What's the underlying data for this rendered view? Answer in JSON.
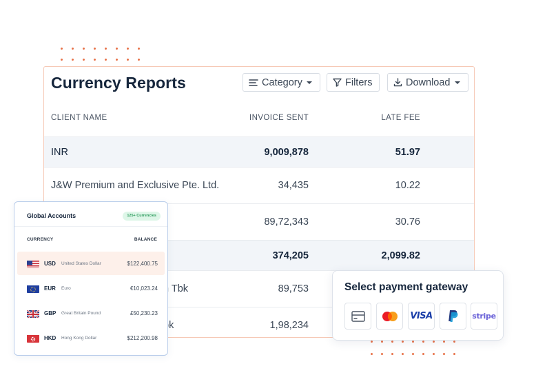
{
  "report": {
    "title": "Currency Reports",
    "toolbar": {
      "category_label": "Category",
      "filters_label": "Filters",
      "download_label": "Download"
    },
    "columns": {
      "client": "CLIENT NAME",
      "invoice": "INVOICE SENT",
      "late_fee": "LATE FEE"
    },
    "rows": [
      {
        "client": "INR",
        "invoice": "9,009,878",
        "late_fee": "51.97",
        "highlighted": true
      },
      {
        "client": "J&W Premium and Exclusive Pte. Ltd.",
        "invoice": "34,435",
        "late_fee": "10.22",
        "highlighted": false
      },
      {
        "client": "",
        "invoice": "89,72,343",
        "late_fee": "30.76",
        "highlighted": false
      },
      {
        "client": "",
        "invoice": "374,205",
        "late_fee": "2,099.82",
        "highlighted": true
      },
      {
        "client": "n Tbk",
        "invoice": "89,753",
        "late_fee": "",
        "highlighted": false
      },
      {
        "client": "bk",
        "invoice": "1,98,234",
        "late_fee": "",
        "highlighted": false
      }
    ]
  },
  "accounts": {
    "title": "Global Accounts",
    "badge": "125+ Currencies",
    "col_currency": "CURRENCY",
    "col_balance": "BALANCE",
    "rows": [
      {
        "code": "USD",
        "name": "United States Dollar",
        "balance": "$122,400.75",
        "flag": "us-flag"
      },
      {
        "code": "EUR",
        "name": "Euro",
        "balance": "€10,023.24",
        "flag": "eu-flag"
      },
      {
        "code": "GBP",
        "name": "Great Britain Pound",
        "balance": "£50,230.23",
        "flag": "uk-flag"
      },
      {
        "code": "HKD",
        "name": "Hong Kong Dollar",
        "balance": "$212,200.98",
        "flag": "hk-flag"
      }
    ]
  },
  "payment": {
    "title": "Select payment gateway",
    "gateways": [
      {
        "name": "card",
        "icon": "card-icon"
      },
      {
        "name": "mastercard",
        "icon": "mastercard-icon"
      },
      {
        "name": "visa",
        "label": "VISA"
      },
      {
        "name": "paypal",
        "icon": "paypal-icon"
      },
      {
        "name": "stripe",
        "label": "stripe"
      }
    ]
  },
  "colors": {
    "accent_orange": "#e8734a",
    "heading": "#16263c",
    "highlight_row": "#f2f5f9",
    "badge_green": "#2c9b5c",
    "card_border": "#b9cdea"
  }
}
